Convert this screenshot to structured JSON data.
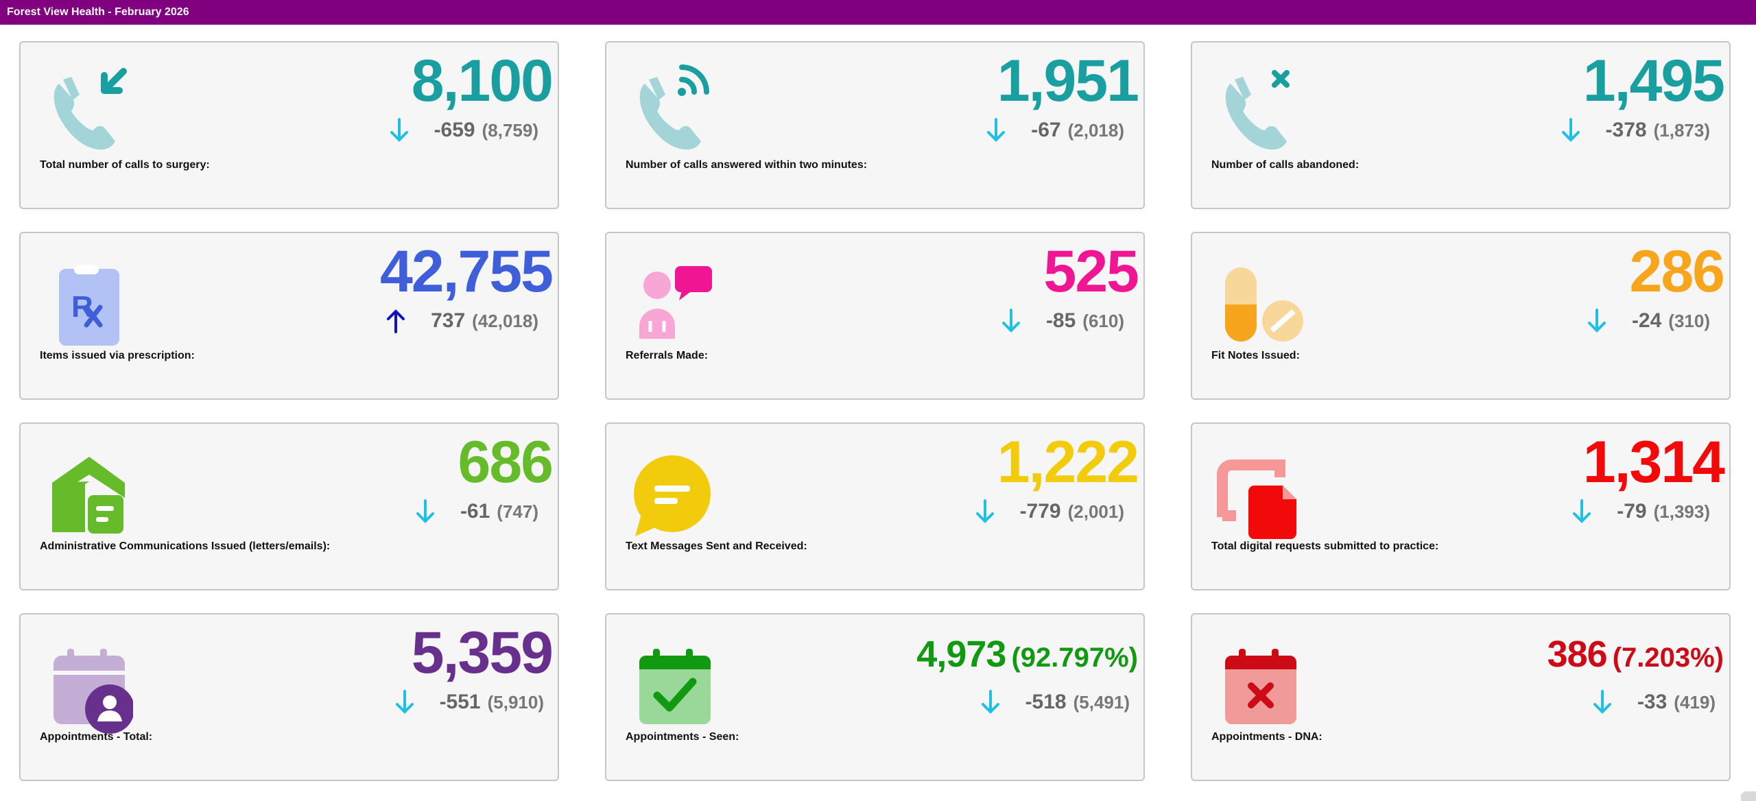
{
  "header": {
    "title": "Forest View Health - February 2026"
  },
  "cards": [
    {
      "label": "Total number of calls to surgery:",
      "value": "8,100",
      "change": "-659",
      "previous": "(8,759)",
      "direction": "down",
      "value_color": "#1a9fa0",
      "icon": "phone-incoming-icon"
    },
    {
      "label": "Number of calls answered within two minutes:",
      "value": "1,951",
      "change": "-67",
      "previous": "(2,018)",
      "direction": "down",
      "value_color": "#1a9fa0",
      "icon": "phone-signal-icon"
    },
    {
      "label": "Number of calls abandoned:",
      "value": "1,495",
      "change": "-378",
      "previous": "(1,873)",
      "direction": "down",
      "value_color": "#1a9fa0",
      "icon": "phone-missed-icon"
    },
    {
      "label": "Items issued via prescription:",
      "value": "42,755",
      "change": "737",
      "previous": "(42,018)",
      "direction": "up",
      "value_color": "#3e5fd9",
      "icon": "prescription-clipboard-icon"
    },
    {
      "label": "Referrals Made:",
      "value": "525",
      "change": "-85",
      "previous": "(610)",
      "direction": "down",
      "value_color": "#f01593",
      "icon": "doctor-referral-icon"
    },
    {
      "label": "Fit Notes Issued:",
      "value": "286",
      "change": "-24",
      "previous": "(310)",
      "direction": "down",
      "value_color": "#f7a51c",
      "icon": "pills-icon"
    },
    {
      "label": "Administrative Communications Issued (letters/emails):",
      "value": "686",
      "change": "-61",
      "previous": "(747)",
      "direction": "down",
      "value_color": "#66bb2a",
      "icon": "mail-house-icon"
    },
    {
      "label": "Text Messages Sent and Received:",
      "value": "1,222",
      "change": "-779",
      "previous": "(2,001)",
      "direction": "down",
      "value_color": "#f2cb0c",
      "icon": "chat-bubble-icon"
    },
    {
      "label": "Total digital requests submitted to practice:",
      "value": "1,314",
      "change": "-79",
      "previous": "(1,393)",
      "direction": "down",
      "value_color": "#f20a0a",
      "icon": "digital-document-icon"
    },
    {
      "label": "Appointments - Total:",
      "value": "5,359",
      "change": "-551",
      "previous": "(5,910)",
      "direction": "down",
      "value_color": "#67308c",
      "icon": "calendar-user-icon"
    },
    {
      "label": "Appointments - Seen:",
      "value": "4,973",
      "percent": "(92.797%)",
      "change": "-518",
      "previous": "(5,491)",
      "direction": "down",
      "value_color": "#119a11",
      "icon": "calendar-check-icon"
    },
    {
      "label": "Appointments - DNA:",
      "value": "386",
      "percent": "(7.203%)",
      "change": "-33",
      "previous": "(419)",
      "direction": "down",
      "value_color": "#cc0b16",
      "icon": "calendar-cross-icon"
    }
  ],
  "colors": {
    "arrow_down": "#1fc0e3",
    "arrow_up": "#1010c8",
    "header": "#800080"
  }
}
